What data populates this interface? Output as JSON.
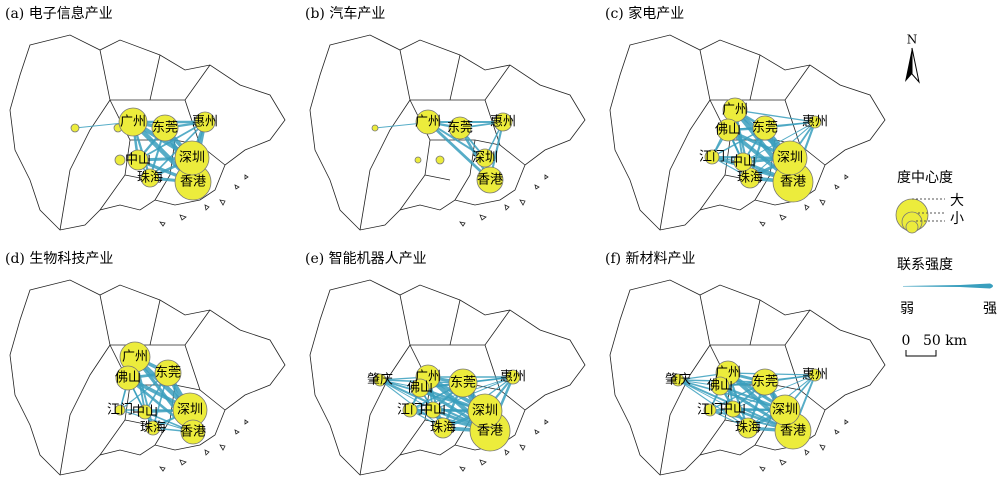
{
  "panels": [
    {
      "title": "(a) 电子信息产业",
      "cities": [
        "广州",
        "东莞",
        "惠州",
        "中山",
        "深圳",
        "珠海",
        "香港"
      ]
    },
    {
      "title": "(b) 汽车产业",
      "cities": [
        "广州",
        "东莞",
        "惠州",
        "深圳",
        "香港"
      ]
    },
    {
      "title": "(c) 家电产业",
      "cities": [
        "广州",
        "佛山",
        "东莞",
        "惠州",
        "江门",
        "中山",
        "深圳",
        "珠海",
        "香港"
      ]
    },
    {
      "title": "(d) 生物科技产业",
      "cities": [
        "广州",
        "佛山",
        "东莞",
        "江门",
        "中山",
        "深圳",
        "珠海",
        "香港"
      ]
    },
    {
      "title": "(e) 智能机器人产业",
      "cities": [
        "肇庆",
        "广州",
        "佛山",
        "东莞",
        "惠州",
        "江门",
        "中山",
        "深圳",
        "珠海",
        "香港"
      ]
    },
    {
      "title": "(f) 新材料产业",
      "cities": [
        "肇庆",
        "广州",
        "佛山",
        "东莞",
        "惠州",
        "江门",
        "中山",
        "深圳",
        "珠海",
        "香港"
      ]
    }
  ],
  "legend": {
    "north": "N",
    "centrality_title": "度中心度",
    "large": "大",
    "small": "小",
    "link_title": "联系强度",
    "weak": "弱",
    "strong": "强",
    "scale_zero": "0",
    "scale_distance": "50 km"
  }
}
